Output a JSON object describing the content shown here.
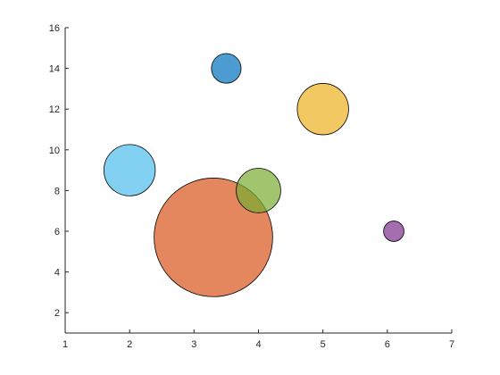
{
  "chart_data": {
    "type": "scatter",
    "title": "",
    "xlabel": "",
    "ylabel": "",
    "xlim": [
      1,
      7
    ],
    "ylim": [
      1,
      16
    ],
    "xticks": [
      1,
      2,
      3,
      4,
      5,
      6,
      7
    ],
    "yticks": [
      2,
      4,
      6,
      8,
      10,
      12,
      14,
      16
    ],
    "grid": false,
    "legend": "none",
    "marker_edge_color": "#000000",
    "points": [
      {
        "x": 3.3,
        "y": 5.7,
        "size": 64,
        "color": "#D95319",
        "alpha": 0.7
      },
      {
        "x": 4.0,
        "y": 8.0,
        "size": 9,
        "color": "#77AC30",
        "alpha": 0.7
      },
      {
        "x": 2.0,
        "y": 9.0,
        "size": 12,
        "color": "#4DBEEE",
        "alpha": 0.7
      },
      {
        "x": 5.0,
        "y": 12.0,
        "size": 12,
        "color": "#EDB120",
        "alpha": 0.7
      },
      {
        "x": 3.5,
        "y": 14.0,
        "size": 4,
        "color": "#0072BD",
        "alpha": 0.7
      },
      {
        "x": 6.1,
        "y": 6.0,
        "size": 1.9,
        "color": "#7E2F8E",
        "alpha": 0.7
      }
    ]
  }
}
